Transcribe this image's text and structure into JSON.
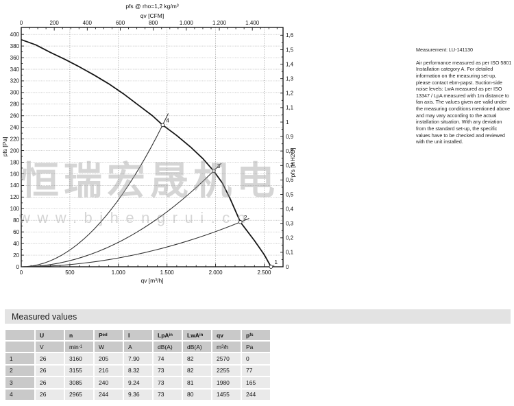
{
  "chart_data": {
    "type": "line",
    "title": "pfs @ rho=1,2 kg/m³",
    "top_axis_label": "qv [CFM]",
    "bottom_axis_label": "qv [m³/h]",
    "left_axis_label": "pfs [Pa]",
    "right_axis_label": "pfs [InH2O]",
    "x_axis": {
      "max": 2694,
      "major_step": 500,
      "minor_step": 100,
      "ticks": [
        "0",
        "500",
        "1.000",
        "1.500",
        "2.000",
        "2.500"
      ]
    },
    "x_top_axis": {
      "max": 1586,
      "major_step": 200,
      "minor_step": 50,
      "ticks": [
        "0",
        "200",
        "400",
        "600",
        "800",
        "1.000",
        "1.200",
        "1.400"
      ]
    },
    "y_axis": {
      "max": 412,
      "major_step": 20,
      "minor_step": 10,
      "ticks": [
        "0",
        "20",
        "40",
        "60",
        "80",
        "100",
        "120",
        "140",
        "160",
        "180",
        "200",
        "220",
        "240",
        "260",
        "280",
        "300",
        "320",
        "340",
        "360",
        "380",
        "400"
      ]
    },
    "y_right_axis": {
      "max": 1.654,
      "major_step": 0.1,
      "minor_step": 0.05,
      "ticks": [
        "0",
        "0,1",
        "0,2",
        "0,3",
        "0,4",
        "0,5",
        "0,6",
        "0,7",
        "0,8",
        "0,9",
        "1",
        "1,1",
        "1,2",
        "1,3",
        "1,4",
        "1,5",
        "1,6"
      ]
    },
    "grid": {
      "h_step": 20,
      "v_step": 500
    },
    "fan_curve": [
      [
        0,
        391
      ],
      [
        150,
        382
      ],
      [
        300,
        369
      ],
      [
        450,
        357
      ],
      [
        600,
        344
      ],
      [
        750,
        330
      ],
      [
        900,
        315
      ],
      [
        1050,
        298
      ],
      [
        1200,
        279
      ],
      [
        1350,
        260
      ],
      [
        1455,
        244
      ],
      [
        1600,
        226
      ],
      [
        1750,
        205
      ],
      [
        1870,
        186
      ],
      [
        1980,
        165
      ],
      [
        2070,
        144
      ],
      [
        2150,
        117
      ],
      [
        2255,
        77
      ],
      [
        2400,
        45
      ],
      [
        2500,
        21
      ],
      [
        2570,
        0
      ]
    ],
    "system_curves": [
      {
        "label": "4",
        "qv": 1455,
        "pfs": 244
      },
      {
        "label": "3",
        "qv": 1980,
        "pfs": 165
      },
      {
        "label": "2",
        "qv": 2255,
        "pfs": 77
      }
    ],
    "operating_points": [
      {
        "label": "1",
        "qv": 2570,
        "pfs": 0
      },
      {
        "label": "2",
        "qv": 2255,
        "pfs": 77
      },
      {
        "label": "3",
        "qv": 1980,
        "pfs": 165
      },
      {
        "label": "4",
        "qv": 1455,
        "pfs": 244
      }
    ]
  },
  "watermark": {
    "line1": "恒瑞宏晟机电",
    "line2": "www.bjhengrui.cn"
  },
  "note": {
    "title": "Measurement: LU-141130",
    "body": "Air performance measured as per ISO 5801 Installation category A. For detailed information on the measuring set-up, please contact ebm-papst. Suction-side noise levels: LwA measured as per ISO 13347 / LpA measured with 1m distance to fan axis. The values given are valid under the measuring conditions mentioned above and may vary according to the actual installation situation. With any deviation from the standard set-up, the specific values have to be checked and reviewed with the unit installed."
  },
  "table": {
    "title": "Measured values",
    "columns": [
      {
        "sym": "U",
        "sub": "",
        "u1": "V",
        "usup": "",
        "u2": ""
      },
      {
        "sym": "n",
        "sub": "",
        "u1": "min",
        "usup": "-1",
        "u2": ""
      },
      {
        "sym": "P",
        "sub": "ed",
        "u1": "W",
        "usup": "",
        "u2": ""
      },
      {
        "sym": "I",
        "sub": "",
        "u1": "A",
        "usup": "",
        "u2": ""
      },
      {
        "sym": "LpA",
        "sub": "in",
        "u1": "dB(A)",
        "usup": "",
        "u2": ""
      },
      {
        "sym": "LwA",
        "sub": "in",
        "u1": "dB(A)",
        "usup": "",
        "u2": ""
      },
      {
        "sym": "qv",
        "sub": "",
        "u1": "m",
        "usup": "3",
        "u2": "/h"
      },
      {
        "sym": "p",
        "sub": "fs",
        "u1": "Pa",
        "usup": "",
        "u2": ""
      }
    ],
    "rows": [
      [
        "1",
        "26",
        "3160",
        "205",
        "7.90",
        "74",
        "82",
        "2570",
        "0"
      ],
      [
        "2",
        "26",
        "3155",
        "216",
        "8.32",
        "73",
        "82",
        "2255",
        "77"
      ],
      [
        "3",
        "26",
        "3085",
        "240",
        "9.24",
        "73",
        "81",
        "1980",
        "165"
      ],
      [
        "4",
        "26",
        "2965",
        "244",
        "9.36",
        "73",
        "80",
        "1455",
        "244"
      ]
    ]
  }
}
